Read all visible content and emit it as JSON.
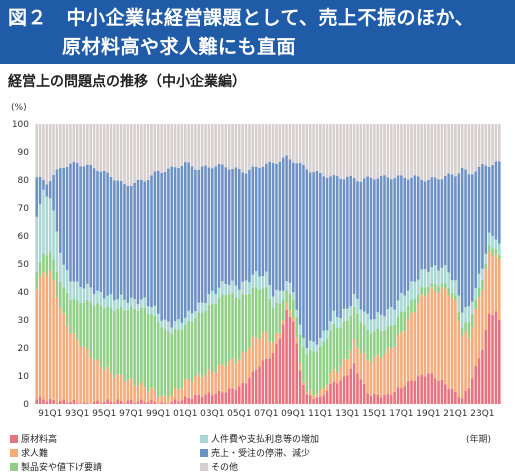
{
  "header": {
    "line1": "図２　中小企業は経営課題として、売上不振のほか、",
    "line2": "原材料高や求人難にも直面"
  },
  "subtitle": "経営上の問題点の推移（中小企業編）",
  "colors": {
    "raw_material": "#e8727d",
    "recruitment": "#f5ab7a",
    "price_cut": "#8fcf86",
    "labor_cost": "#a9d8d4",
    "sales_slump": "#6d91c4",
    "other": "#d6cfcf",
    "header": "#1f5ba6"
  },
  "chart_data": {
    "type": "bar",
    "stacked": true,
    "unit_label": "(%)",
    "xunit_label": "(年期)",
    "ylim": [
      0,
      100
    ],
    "yticks": [
      0,
      10,
      20,
      30,
      40,
      50,
      60,
      70,
      80,
      90,
      100
    ],
    "x_start": "1990Q1",
    "x_end": "2024Q2",
    "xtick_labels": [
      "91Q1",
      "93Q1",
      "95Q1",
      "97Q1",
      "99Q1",
      "01Q1",
      "03Q1",
      "05Q1",
      "07Q1",
      "09Q1",
      "11Q1",
      "13Q1",
      "15Q1",
      "17Q1",
      "19Q1",
      "21Q1",
      "23Q1"
    ],
    "series_order": [
      "raw_material",
      "recruitment",
      "price_cut",
      "labor_cost",
      "sales_slump",
      "other"
    ],
    "series": [
      {
        "key": "raw_material",
        "name": "原材料高",
        "color": "#e8727d"
      },
      {
        "key": "recruitment",
        "name": "求人難",
        "color": "#f5ab7a"
      },
      {
        "key": "price_cut",
        "name": "製品安や値下げ要請",
        "color": "#8fcf86"
      },
      {
        "key": "labor_cost",
        "name": "人件費や支払利息等の増加",
        "color": "#a9d8d4"
      },
      {
        "key": "sales_slump",
        "name": "売上・受注の停滞、減少",
        "color": "#6d91c4"
      },
      {
        "key": "other",
        "name": "その他",
        "color": "#d6cfcf"
      }
    ],
    "anchors": {
      "raw_material": [
        [
          0,
          2
        ],
        [
          6,
          1
        ],
        [
          10,
          1
        ],
        [
          14,
          0
        ],
        [
          20,
          1
        ],
        [
          28,
          1
        ],
        [
          34,
          1
        ],
        [
          38,
          0
        ],
        [
          44,
          2
        ],
        [
          48,
          3
        ],
        [
          54,
          4
        ],
        [
          60,
          6
        ],
        [
          62,
          8
        ],
        [
          66,
          14
        ],
        [
          70,
          18
        ],
        [
          72,
          24
        ],
        [
          74,
          33
        ],
        [
          76,
          30
        ],
        [
          78,
          12
        ],
        [
          80,
          3
        ],
        [
          84,
          2
        ],
        [
          88,
          8
        ],
        [
          90,
          8
        ],
        [
          94,
          14
        ],
        [
          98,
          4
        ],
        [
          100,
          3
        ],
        [
          104,
          3
        ],
        [
          108,
          6
        ],
        [
          112,
          9
        ],
        [
          116,
          11
        ],
        [
          120,
          8
        ],
        [
          124,
          4
        ],
        [
          126,
          2
        ],
        [
          128,
          6
        ],
        [
          132,
          20
        ],
        [
          134,
          32
        ],
        [
          136,
          33
        ],
        [
          138,
          26
        ],
        [
          138,
          25
        ]
      ],
      "recruitment": [
        [
          0,
          40
        ],
        [
          2,
          45
        ],
        [
          4,
          46
        ],
        [
          6,
          38
        ],
        [
          8,
          30
        ],
        [
          10,
          25
        ],
        [
          12,
          22
        ],
        [
          14,
          20
        ],
        [
          18,
          14
        ],
        [
          22,
          10
        ],
        [
          26,
          8
        ],
        [
          30,
          6
        ],
        [
          34,
          4
        ],
        [
          38,
          2
        ],
        [
          42,
          4
        ],
        [
          44,
          6
        ],
        [
          48,
          7
        ],
        [
          52,
          8
        ],
        [
          56,
          10
        ],
        [
          60,
          10
        ],
        [
          64,
          12
        ],
        [
          68,
          9
        ],
        [
          70,
          4
        ],
        [
          72,
          2
        ],
        [
          76,
          2
        ],
        [
          78,
          2
        ],
        [
          80,
          1
        ],
        [
          84,
          2
        ],
        [
          88,
          4
        ],
        [
          92,
          6
        ],
        [
          96,
          10
        ],
        [
          100,
          13
        ],
        [
          104,
          16
        ],
        [
          106,
          17
        ],
        [
          110,
          22
        ],
        [
          114,
          28
        ],
        [
          118,
          31
        ],
        [
          120,
          33
        ],
        [
          122,
          34
        ],
        [
          124,
          32
        ],
        [
          126,
          23
        ],
        [
          128,
          18
        ],
        [
          132,
          22
        ],
        [
          136,
          21
        ],
        [
          138,
          21
        ]
      ],
      "price_cut": [
        [
          0,
          6
        ],
        [
          4,
          7
        ],
        [
          8,
          10
        ],
        [
          12,
          14
        ],
        [
          16,
          19
        ],
        [
          20,
          22
        ],
        [
          24,
          24
        ],
        [
          28,
          26
        ],
        [
          32,
          28
        ],
        [
          36,
          26
        ],
        [
          40,
          22
        ],
        [
          44,
          20
        ],
        [
          48,
          22
        ],
        [
          52,
          24
        ],
        [
          56,
          25
        ],
        [
          60,
          22
        ],
        [
          64,
          18
        ],
        [
          68,
          16
        ],
        [
          72,
          10
        ],
        [
          74,
          5
        ],
        [
          76,
          6
        ],
        [
          78,
          10
        ],
        [
          80,
          14
        ],
        [
          84,
          16
        ],
        [
          88,
          16
        ],
        [
          92,
          13
        ],
        [
          96,
          11
        ],
        [
          100,
          10
        ],
        [
          104,
          8
        ],
        [
          108,
          7
        ],
        [
          112,
          4
        ],
        [
          116,
          2
        ],
        [
          120,
          2
        ],
        [
          124,
          2
        ],
        [
          126,
          3
        ],
        [
          128,
          5
        ],
        [
          132,
          3
        ],
        [
          136,
          2
        ],
        [
          138,
          2
        ]
      ],
      "labor_cost": [
        [
          0,
          20
        ],
        [
          2,
          22
        ],
        [
          4,
          20
        ],
        [
          6,
          14
        ],
        [
          8,
          8
        ],
        [
          12,
          6
        ],
        [
          16,
          5
        ],
        [
          20,
          4
        ],
        [
          24,
          4
        ],
        [
          28,
          3
        ],
        [
          32,
          3
        ],
        [
          36,
          3
        ],
        [
          40,
          3
        ],
        [
          44,
          3
        ],
        [
          48,
          3
        ],
        [
          52,
          4
        ],
        [
          56,
          4
        ],
        [
          60,
          4
        ],
        [
          64,
          5
        ],
        [
          68,
          5
        ],
        [
          72,
          4
        ],
        [
          76,
          3
        ],
        [
          80,
          3
        ],
        [
          84,
          3
        ],
        [
          88,
          4
        ],
        [
          92,
          4
        ],
        [
          96,
          5
        ],
        [
          100,
          5
        ],
        [
          104,
          6
        ],
        [
          108,
          6
        ],
        [
          112,
          6
        ],
        [
          116,
          6
        ],
        [
          120,
          6
        ],
        [
          124,
          5
        ],
        [
          126,
          6
        ],
        [
          128,
          5
        ],
        [
          132,
          4
        ],
        [
          136,
          4
        ],
        [
          138,
          4
        ]
      ],
      "sales_slump": [
        [
          0,
          12
        ],
        [
          2,
          5
        ],
        [
          4,
          4
        ],
        [
          6,
          12
        ],
        [
          8,
          24
        ],
        [
          12,
          33
        ],
        [
          16,
          38
        ],
        [
          20,
          38
        ],
        [
          24,
          40
        ],
        [
          28,
          40
        ],
        [
          32,
          44
        ],
        [
          36,
          50
        ],
        [
          40,
          52
        ],
        [
          44,
          53
        ],
        [
          48,
          50
        ],
        [
          52,
          45
        ],
        [
          56,
          42
        ],
        [
          60,
          43
        ],
        [
          64,
          43
        ],
        [
          68,
          47
        ],
        [
          70,
          52
        ],
        [
          72,
          55
        ],
        [
          74,
          50
        ],
        [
          76,
          53
        ],
        [
          78,
          58
        ],
        [
          80,
          61
        ],
        [
          84,
          56
        ],
        [
          88,
          48
        ],
        [
          92,
          42
        ],
        [
          96,
          40
        ],
        [
          100,
          41
        ],
        [
          104,
          38
        ],
        [
          108,
          35
        ],
        [
          112,
          31
        ],
        [
          116,
          27
        ],
        [
          120,
          27
        ],
        [
          124,
          37
        ],
        [
          126,
          45
        ],
        [
          128,
          42
        ],
        [
          132,
          29
        ],
        [
          136,
          28
        ],
        [
          138,
          28
        ]
      ]
    },
    "total_anchors": [
      [
        0,
        81
      ],
      [
        3,
        79
      ],
      [
        6,
        83
      ],
      [
        8,
        85
      ],
      [
        12,
        86
      ],
      [
        18,
        84
      ],
      [
        24,
        80
      ],
      [
        26,
        78
      ],
      [
        32,
        80
      ],
      [
        36,
        83
      ],
      [
        40,
        84
      ],
      [
        44,
        86
      ],
      [
        48,
        84
      ],
      [
        52,
        85
      ],
      [
        56,
        85
      ],
      [
        58,
        84
      ],
      [
        62,
        83
      ],
      [
        66,
        85
      ],
      [
        70,
        86
      ],
      [
        74,
        88
      ],
      [
        76,
        87
      ],
      [
        80,
        84
      ],
      [
        84,
        82
      ],
      [
        88,
        81
      ],
      [
        92,
        81
      ],
      [
        96,
        80
      ],
      [
        100,
        81
      ],
      [
        104,
        81
      ],
      [
        108,
        81
      ],
      [
        112,
        81
      ],
      [
        116,
        80
      ],
      [
        120,
        81
      ],
      [
        124,
        82
      ],
      [
        126,
        84
      ],
      [
        128,
        82
      ],
      [
        132,
        85
      ],
      [
        136,
        86
      ],
      [
        138,
        86
      ]
    ]
  }
}
